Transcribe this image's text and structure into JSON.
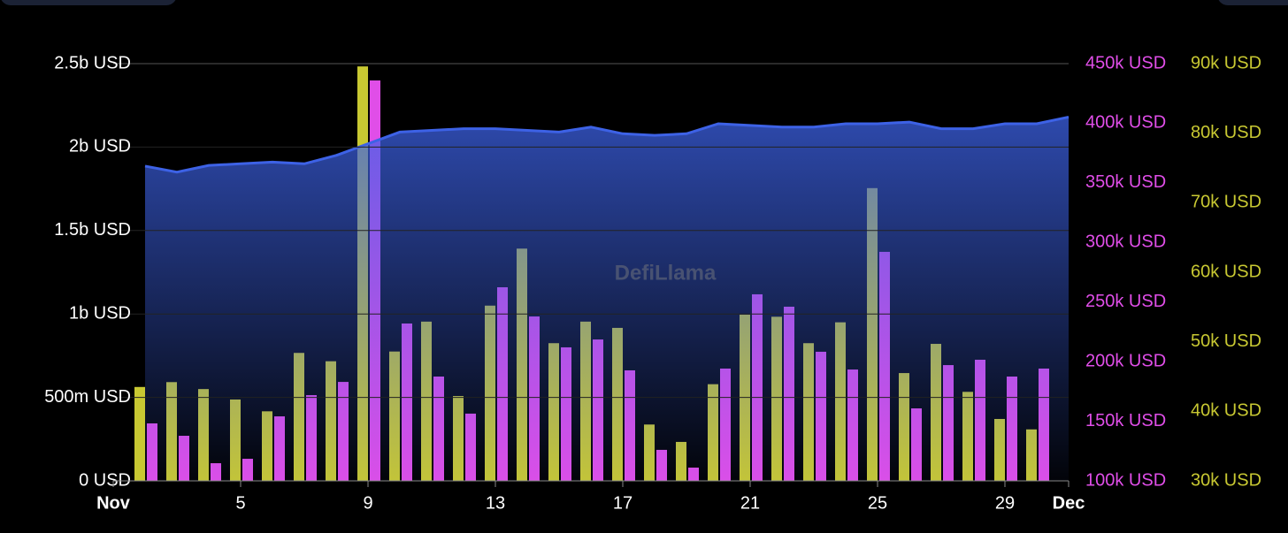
{
  "chart_data": {
    "type": "bar",
    "watermark": "DefiLlama",
    "xlim": [
      1,
      31
    ],
    "xticks": [
      {
        "value": 1,
        "label": "Nov"
      },
      5,
      9,
      13,
      17,
      21,
      25,
      29,
      {
        "value": 31,
        "label": "Dec"
      }
    ],
    "ylim": [
      0,
      2500000000
    ],
    "yticks": [
      {
        "value": 0,
        "label": "0 USD"
      },
      {
        "value": 500000000,
        "label": "500m USD"
      },
      {
        "value": 1000000000,
        "label": "1b USD"
      },
      {
        "value": 1500000000,
        "label": "1.5b USD"
      },
      {
        "value": 2000000000,
        "label": "2b USD"
      },
      {
        "value": 2500000000,
        "label": "2.5b USD"
      }
    ],
    "y2lim": [
      100000,
      450000
    ],
    "y2ticks": [
      {
        "value": 100000,
        "label": "100k USD"
      },
      {
        "value": 150000,
        "label": "150k USD"
      },
      {
        "value": 200000,
        "label": "200k USD"
      },
      {
        "value": 250000,
        "label": "250k USD"
      },
      {
        "value": 300000,
        "label": "300k USD"
      },
      {
        "value": 350000,
        "label": "350k USD"
      },
      {
        "value": 400000,
        "label": "400k USD"
      },
      {
        "value": 450000,
        "label": "450k USD"
      }
    ],
    "y3lim": [
      30000,
      90000
    ],
    "y3ticks": [
      {
        "value": 30000,
        "label": "30k USD"
      },
      {
        "value": 40000,
        "label": "40k USD"
      },
      {
        "value": 50000,
        "label": "50k USD"
      },
      {
        "value": 60000,
        "label": "60k USD"
      },
      {
        "value": 70000,
        "label": "70k USD"
      },
      {
        "value": 80000,
        "label": "80k USD"
      },
      {
        "value": 90000,
        "label": "90k USD"
      }
    ],
    "grid": true,
    "series": [
      {
        "type": "area",
        "axis": "y",
        "color": "#3d62e6",
        "x": [
          2,
          3,
          4,
          5,
          6,
          7,
          8,
          9,
          10,
          11,
          12,
          13,
          14,
          15,
          16,
          17,
          18,
          19,
          20,
          21,
          22,
          23,
          24,
          25,
          26,
          27,
          28,
          29,
          30,
          31
        ],
        "values": [
          1886000000,
          1850000000,
          1890000000,
          1900000000,
          1910000000,
          1900000000,
          1950000000,
          2020000000,
          2090000000,
          2100000000,
          2110000000,
          2110000000,
          2100000000,
          2090000000,
          2120000000,
          2080000000,
          2070000000,
          2080000000,
          2140000000,
          2130000000,
          2120000000,
          2120000000,
          2140000000,
          2140000000,
          2150000000,
          2110000000,
          2110000000,
          2140000000,
          2140000000,
          2180000000
        ]
      },
      {
        "type": "bar",
        "axis": "y3",
        "color": "#c8c832",
        "x": [
          2,
          3,
          4,
          5,
          6,
          7,
          8,
          9,
          10,
          11,
          12,
          13,
          14,
          15,
          16,
          17,
          18,
          19,
          20,
          21,
          22,
          23,
          24,
          25,
          26,
          27,
          28,
          29,
          30
        ],
        "values": [
          43500,
          44200,
          43200,
          41700,
          40000,
          48400,
          47200,
          89600,
          48600,
          52900,
          42200,
          55200,
          63400,
          49800,
          52900,
          52000,
          38100,
          35600,
          43900,
          53900,
          53600,
          49800,
          52800,
          72100,
          45500,
          49700,
          42800,
          38900,
          37400
        ]
      },
      {
        "type": "bar",
        "axis": "y2",
        "color": "#e04ee8",
        "x": [
          2,
          3,
          4,
          5,
          6,
          7,
          8,
          9,
          10,
          11,
          12,
          13,
          14,
          15,
          16,
          17,
          18,
          19,
          20,
          21,
          22,
          23,
          24,
          25,
          26,
          27,
          28,
          29,
          30
        ],
        "values": [
          148200,
          137800,
          114800,
          118500,
          154100,
          171900,
          183000,
          435900,
          232000,
          187500,
          156400,
          262400,
          237900,
          212000,
          218600,
          192700,
          126000,
          111100,
          194200,
          256500,
          246100,
          208300,
          193400,
          292100,
          160800,
          197100,
          201600,
          187500,
          194200
        ]
      }
    ]
  }
}
